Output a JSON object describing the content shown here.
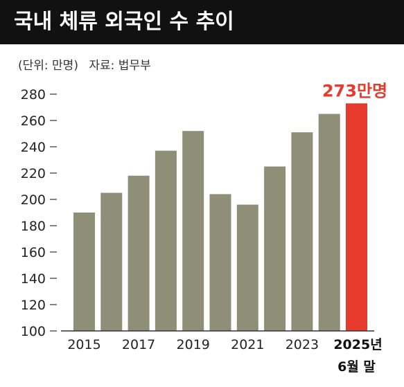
{
  "title": "국내 체류 외국인 수 추이",
  "unit_note": "(단위: 만명)",
  "source_note": "자료: 법무부",
  "colors": {
    "bar": "#8f8e77",
    "highlight": "#e53a2c",
    "title_bg": "#111111"
  },
  "chart_data": {
    "type": "bar",
    "categories": [
      "2015",
      "2016",
      "2017",
      "2018",
      "2019",
      "2020",
      "2021",
      "2022",
      "2023",
      "2024",
      "2025년 6월 말"
    ],
    "values": [
      190,
      205,
      218,
      237,
      252,
      204,
      196,
      225,
      251,
      265,
      273
    ],
    "ylim": [
      100,
      280
    ],
    "yticks": [
      "100",
      "120",
      "140",
      "160",
      "180",
      "200",
      "220",
      "240",
      "260",
      "280"
    ],
    "xtick_labels": [
      "2015",
      "",
      "2017",
      "",
      "2019",
      "",
      "2021",
      "",
      "2023",
      "",
      "2025년"
    ],
    "xtick_sublabel": "6월 말",
    "highlight_index": 10,
    "data_label": "273만명"
  }
}
